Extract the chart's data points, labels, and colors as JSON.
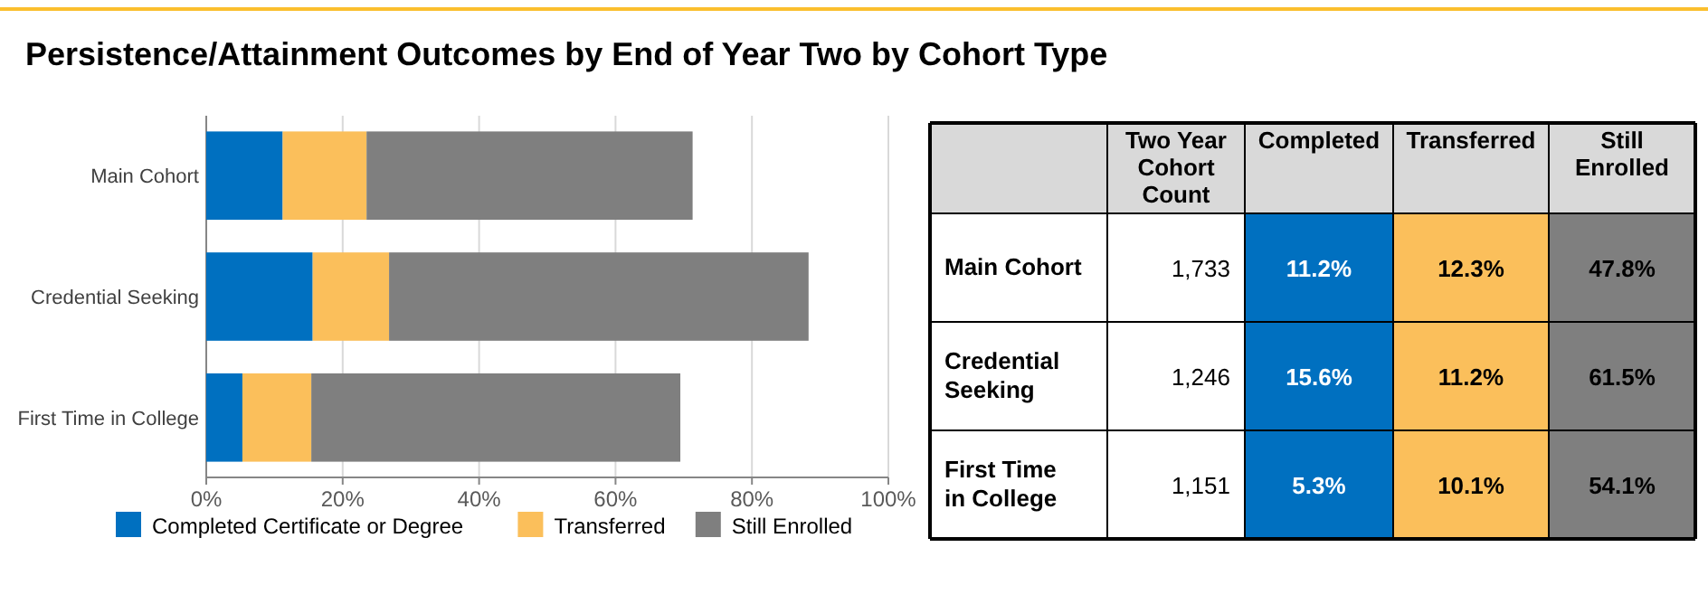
{
  "chart_data": [
    {
      "type": "bar",
      "orientation": "horizontal",
      "stacked": true,
      "title": "Persistence/Attainment Outcomes by End of Year Two by Cohort Type",
      "categories": [
        "Main Cohort",
        "Credential Seeking",
        "First Time in College"
      ],
      "series": [
        {
          "name": "Completed Certificate or Degree",
          "color": "#0070c0",
          "values": [
            11.2,
            15.6,
            5.3
          ]
        },
        {
          "name": "Transferred",
          "color": "#fbbf5b",
          "values": [
            12.3,
            11.2,
            10.1
          ]
        },
        {
          "name": "Still Enrolled",
          "color": "#7f7f7f",
          "values": [
            47.8,
            61.5,
            54.1
          ]
        }
      ],
      "xlim": [
        0,
        100
      ],
      "xticks": [
        {
          "value": 0,
          "label": "0%"
        },
        {
          "value": 20,
          "label": "20%"
        },
        {
          "value": 40,
          "label": "40%"
        },
        {
          "value": 60,
          "label": "60%"
        },
        {
          "value": 80,
          "label": "80%"
        },
        {
          "value": 100,
          "label": "100%"
        }
      ],
      "grid": "x",
      "legend": "bottom"
    },
    {
      "type": "other",
      "categories": [
        "Main Cohort",
        "Credential Seeking",
        "First Time in College"
      ],
      "series": [
        {
          "name": "Two Year Cohort Count",
          "values": [
            1733,
            1246,
            1151
          ],
          "value_labels": [
            "1,733",
            "1,246",
            "1,151"
          ]
        },
        {
          "name": "Completed",
          "color": "#0070c0",
          "values": [
            11.2,
            15.6,
            5.3
          ],
          "value_labels": [
            "11.2%",
            "15.6%",
            "5.3%"
          ]
        },
        {
          "name": "Transferred",
          "color": "#fbbf5b",
          "values": [
            12.3,
            11.2,
            10.1
          ],
          "value_labels": [
            "12.3%",
            "11.2%",
            "10.1%"
          ]
        },
        {
          "name": "Still Enrolled",
          "color": "#7f7f7f",
          "values": [
            47.8,
            61.5,
            54.1
          ],
          "value_labels": [
            "47.8%",
            "61.5%",
            "54.1%"
          ]
        }
      ]
    }
  ]
}
